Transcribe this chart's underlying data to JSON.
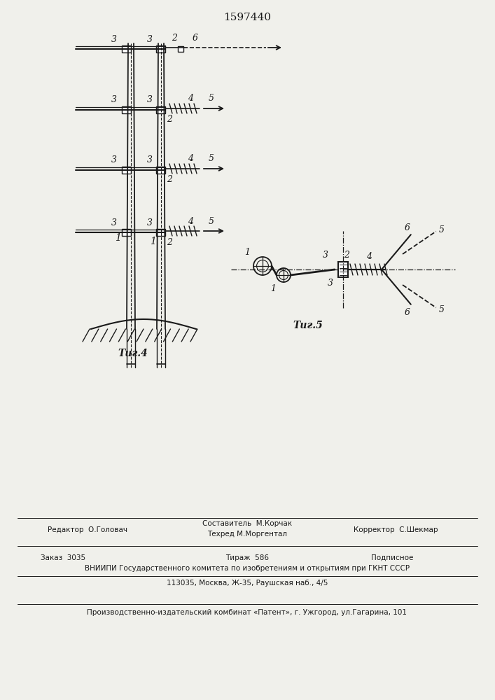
{
  "title": "1597440",
  "fig4_label": "Τиг.4",
  "fig5_label": "Τиг.5",
  "bg_color": "#f0f0eb",
  "line_color": "#1a1a1a",
  "footer": {
    "editor": "Редактор  О.Головач",
    "composer": "Составитель  М.Корчак",
    "techred": "Техред М.Моргентал",
    "corrector": "Корректор  С.Шекмар",
    "order": "Заказ  3035",
    "tirage": "Тираж  586",
    "podpisnoe": "Подписное",
    "vniipи": "ВНИИПИ Государственного комитета по изобретениям и открытиям при ГКНТ СССР",
    "address": "113035, Москва, Ж-35, Раушская наб., 4/5",
    "kombinat": "Производственно-издательский комбинат «Патент», г. Ужгород, ул.Гагарина, 101"
  }
}
